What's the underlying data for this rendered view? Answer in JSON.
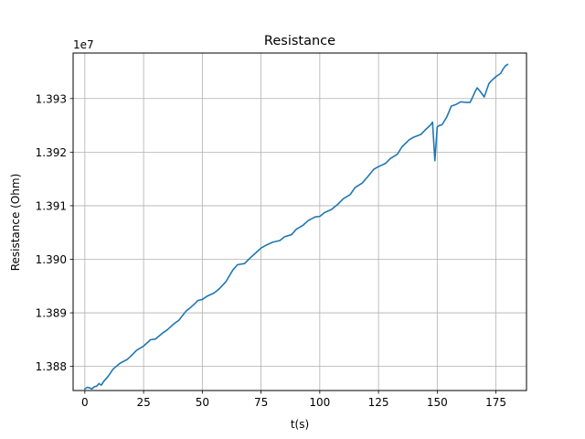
{
  "chart_data": {
    "type": "line",
    "title": "Resistance",
    "xlabel": "t(s)",
    "ylabel": "Resistance (Ohm)",
    "offset_label": "1e7",
    "y_scale_factor": 10000000,
    "xlim": [
      -5,
      188
    ],
    "ylim": [
      13875500,
      13938500
    ],
    "xticks": [
      0,
      25,
      50,
      75,
      100,
      125,
      150,
      175
    ],
    "xtick_labels": [
      "0",
      "25",
      "50",
      "75",
      "100",
      "125",
      "150",
      "175"
    ],
    "yticks": [
      13880000,
      13890000,
      13900000,
      13910000,
      13920000,
      13930000
    ],
    "ytick_labels": [
      "1.388",
      "1.389",
      "1.390",
      "1.391",
      "1.392",
      "1.393"
    ],
    "grid": true,
    "line_color": "#1f77b4",
    "series": [
      {
        "x": [
          0,
          1,
          2,
          3,
          4,
          5,
          6,
          7,
          8,
          10,
          12,
          15,
          18,
          20,
          22,
          25,
          28,
          30,
          33,
          35,
          38,
          40,
          43,
          45,
          47,
          48,
          50,
          52,
          55,
          57,
          60,
          63,
          65,
          68,
          70,
          73,
          75,
          77,
          80,
          83,
          85,
          88,
          90,
          93,
          95,
          98,
          100,
          102,
          105,
          108,
          110,
          113,
          115,
          118,
          120,
          123,
          125,
          128,
          130,
          133,
          135,
          138,
          140,
          143,
          145,
          147,
          148,
          149,
          150,
          151,
          152,
          154,
          156,
          158,
          160,
          162,
          164,
          165,
          166,
          167,
          168,
          170,
          172,
          173,
          175,
          177,
          178,
          179,
          180
        ],
        "y": [
          13875800,
          13876100,
          13876000,
          13875800,
          13876200,
          13876300,
          13876800,
          13876500,
          13877200,
          13878200,
          13879500,
          13880600,
          13881300,
          13882100,
          13883000,
          13883800,
          13885000,
          13885100,
          13886200,
          13886800,
          13888000,
          13888600,
          13890300,
          13891000,
          13891800,
          13892300,
          13892500,
          13893100,
          13893700,
          13894400,
          13895800,
          13898000,
          13899000,
          13899200,
          13900100,
          13901300,
          13902100,
          13902600,
          13903200,
          13903500,
          13904200,
          13904600,
          13905600,
          13906400,
          13907200,
          13907900,
          13908000,
          13908700,
          13909300,
          13910400,
          13911300,
          13912100,
          13913400,
          13914200,
          13915200,
          13916800,
          13917300,
          13917900,
          13918800,
          13919600,
          13921000,
          13922300,
          13922800,
          13923300,
          13924200,
          13925000,
          13925600,
          13918400,
          13924700,
          13925000,
          13925100,
          13926500,
          13928600,
          13928900,
          13929400,
          13929300,
          13929300,
          13930200,
          13931200,
          13932000,
          13931500,
          13930300,
          13932800,
          13933300,
          13934100,
          13934700,
          13935500,
          13936100,
          13936400
        ]
      }
    ]
  }
}
